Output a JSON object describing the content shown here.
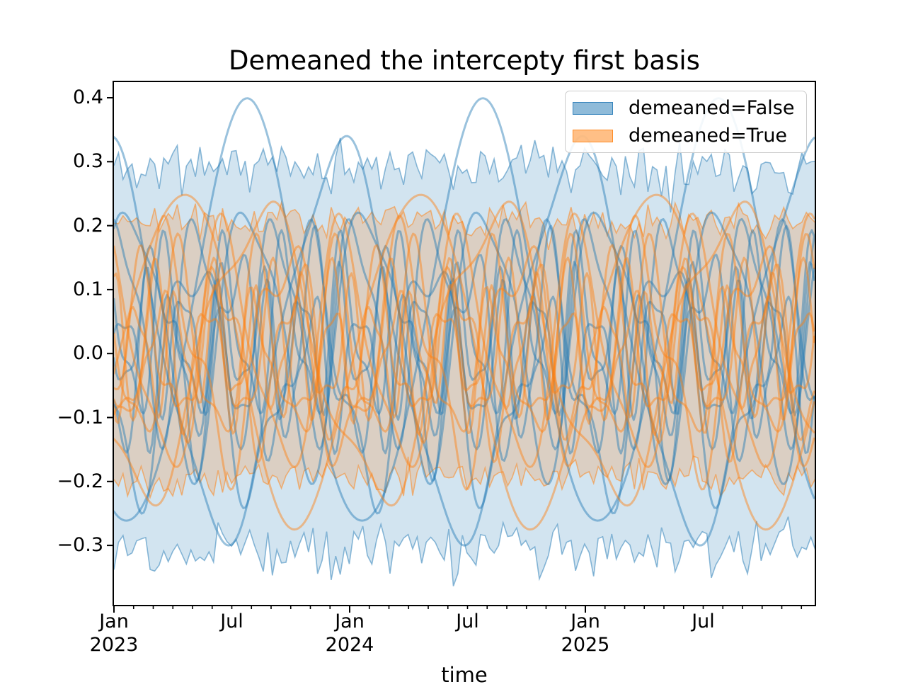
{
  "chart_data": {
    "type": "line",
    "title": "Demeaned the intercepty first basis",
    "xlabel": "time",
    "x_axis_type": "time",
    "x_range": [
      "2023-01",
      "2025-12"
    ],
    "x_span_years": 2.976,
    "x_minor_interval_months": 1,
    "ylim": [
      -0.394,
      0.425
    ],
    "grid": false,
    "legend_position": "upper right",
    "legend": [
      {
        "label": "demeaned=False",
        "color": "#1f77b4"
      },
      {
        "label": "demeaned=True",
        "color": "#ff7f0e"
      }
    ],
    "y_ticks": [
      {
        "v": 0.4,
        "label": "0.4"
      },
      {
        "v": 0.3,
        "label": "0.3"
      },
      {
        "v": 0.2,
        "label": "0.2"
      },
      {
        "v": 0.1,
        "label": "0.1"
      },
      {
        "v": 0.0,
        "label": "0.0"
      },
      {
        "v": -0.1,
        "label": "−0.1"
      },
      {
        "v": -0.2,
        "label": "−0.2"
      },
      {
        "v": -0.3,
        "label": "−0.3"
      }
    ],
    "x_major_ticks": [
      {
        "t": 0.0,
        "month": "Jan",
        "year": "2023"
      },
      {
        "t": 0.5,
        "month": "Jul",
        "year": ""
      },
      {
        "t": 1.0,
        "month": "Jan",
        "year": "2024"
      },
      {
        "t": 1.5,
        "month": "Jul",
        "year": ""
      },
      {
        "t": 2.0,
        "month": "Jan",
        "year": "2025"
      },
      {
        "t": 2.5,
        "month": "Jul",
        "year": ""
      }
    ],
    "style": {
      "fill_alpha": 0.2,
      "band_edge_alpha": 0.5,
      "band_edge_width": 1.6,
      "line_alpha": 0.45,
      "line_width": 3,
      "frame_color": "#000000",
      "tick_color": "#000000"
    },
    "series": [
      {
        "name": "demeaned=False",
        "color": "#1f77b4",
        "band": {
          "upper_base": 0.292,
          "upper_noise": 0.05,
          "lower_base": -0.303,
          "lower_noise": 0.055,
          "seed": 11,
          "samples_per_year": 52
        },
        "lines": [
          {
            "a1": 0.33,
            "f1": 1,
            "p1": -1.95,
            "a2": 0.02,
            "f2": 2,
            "p2": 0.5,
            "off": 0.05
          },
          {
            "a1": 0.3,
            "f1": 1,
            "p1": -4.46,
            "a2": 0.03,
            "f2": 3,
            "p2": 1.2,
            "off": 0.02
          },
          {
            "a1": 0.2,
            "f1": 2,
            "p1": 0.6,
            "a2": 0.05,
            "f2": 4,
            "p2": 2.1,
            "off": 0.04
          },
          {
            "a1": 0.18,
            "f1": 2,
            "p1": 3.6,
            "a2": 0.06,
            "f2": 5,
            "p2": 0.5,
            "off": -0.03
          },
          {
            "a1": 0.16,
            "f1": 3,
            "p1": 1.1,
            "a2": 0.05,
            "f2": 6,
            "p2": 2.8,
            "off": 0.05
          },
          {
            "a1": 0.14,
            "f1": 3,
            "p1": 4.4,
            "a2": 0.06,
            "f2": 7,
            "p2": 1.7,
            "off": 0.0
          },
          {
            "a1": 0.12,
            "f1": 4,
            "p1": 2.3,
            "a2": 0.05,
            "f2": 8,
            "p2": 3.9,
            "off": 0.03
          },
          {
            "a1": 0.1,
            "f1": 5,
            "p1": 0.2,
            "a2": 0.04,
            "f2": 9,
            "p2": 2.2,
            "off": -0.02
          },
          {
            "a1": 0.09,
            "f1": 6,
            "p1": 3.0,
            "a2": 0.04,
            "f2": 10,
            "p2": 4.8,
            "off": 0.02
          }
        ]
      },
      {
        "name": "demeaned=True",
        "color": "#ff7f0e",
        "band": {
          "upper_base": 0.208,
          "upper_noise": 0.035,
          "lower_base": -0.192,
          "lower_noise": 0.035,
          "seed": 21,
          "samples_per_year": 52
        },
        "lines": [
          {
            "a1": 0.26,
            "f1": 1,
            "p1": -0.19,
            "a2": 0.02,
            "f2": 2,
            "p2": 2.0,
            "off": 0.0
          },
          {
            "a1": 0.22,
            "f1": 1,
            "p1": -2.33,
            "a2": 0.04,
            "f2": 3,
            "p2": 0.7,
            "off": 0.0
          },
          {
            "a1": 0.18,
            "f1": 2,
            "p1": 1.9,
            "a2": 0.05,
            "f2": 4,
            "p2": 3.2,
            "off": 0.0
          },
          {
            "a1": 0.16,
            "f1": 2,
            "p1": 5.0,
            "a2": 0.06,
            "f2": 5,
            "p2": 1.4,
            "off": 0.0
          },
          {
            "a1": 0.14,
            "f1": 3,
            "p1": 2.6,
            "a2": 0.05,
            "f2": 6,
            "p2": 4.1,
            "off": 0.0
          },
          {
            "a1": 0.12,
            "f1": 3,
            "p1": 5.7,
            "a2": 0.05,
            "f2": 7,
            "p2": 2.9,
            "off": 0.0
          },
          {
            "a1": 0.11,
            "f1": 4,
            "p1": 3.5,
            "a2": 0.04,
            "f2": 8,
            "p2": 5.3,
            "off": 0.0
          },
          {
            "a1": 0.09,
            "f1": 5,
            "p1": 1.6,
            "a2": 0.04,
            "f2": 9,
            "p2": 0.9,
            "off": 0.0
          },
          {
            "a1": 0.08,
            "f1": 6,
            "p1": 4.2,
            "a2": 0.03,
            "f2": 11,
            "p2": 3.6,
            "off": 0.0
          }
        ]
      }
    ]
  }
}
